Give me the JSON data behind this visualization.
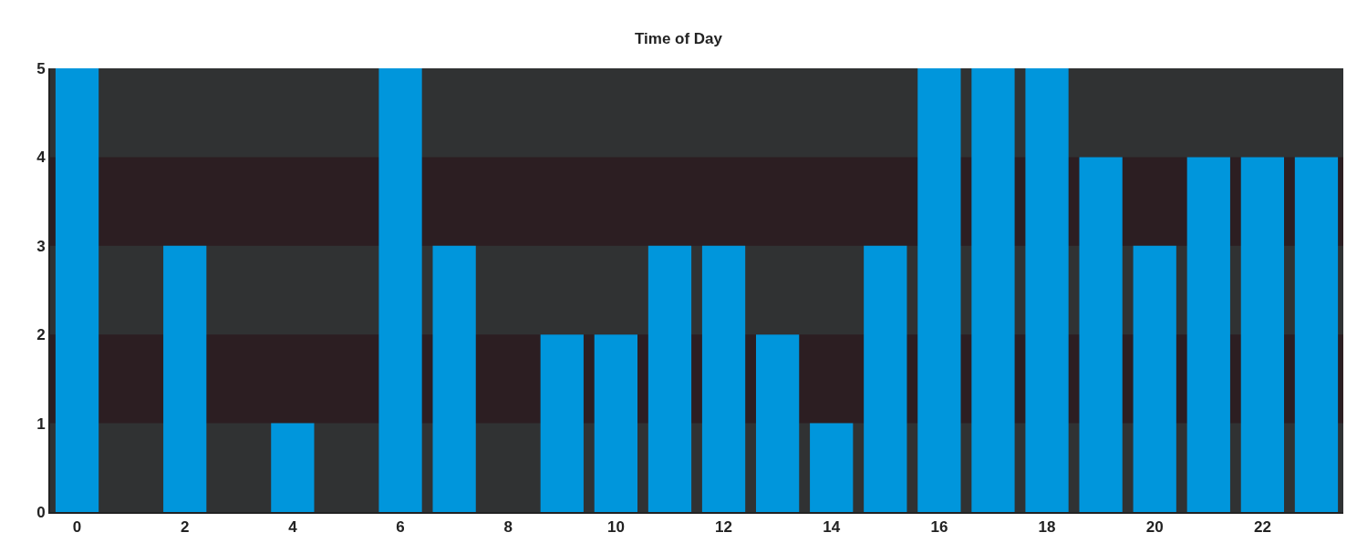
{
  "chart_data": {
    "type": "bar",
    "title": "Time of Day",
    "x": [
      0,
      1,
      2,
      3,
      4,
      5,
      6,
      7,
      8,
      9,
      10,
      11,
      12,
      13,
      14,
      15,
      16,
      17,
      18,
      19,
      20,
      21,
      22,
      23
    ],
    "values": [
      5,
      0,
      3,
      0,
      1,
      0,
      5,
      3,
      0,
      2,
      2,
      3,
      3,
      2,
      1,
      3,
      5,
      5,
      5,
      4,
      3,
      4,
      4,
      4
    ],
    "color": "#0096dc",
    "xlim": [
      -0.5,
      23.5
    ],
    "xticks": [
      0,
      2,
      4,
      6,
      8,
      10,
      12,
      14,
      16,
      18,
      20,
      22
    ],
    "ylim": [
      0,
      5
    ],
    "yticks": [
      0,
      1,
      2,
      3,
      4,
      5
    ],
    "bands": [
      {
        "axis": "y",
        "from": 1,
        "to": 2,
        "color": "#2c1e22"
      },
      {
        "axis": "y",
        "from": 3,
        "to": 4,
        "color": "#2c1e22"
      }
    ],
    "grid": false
  }
}
